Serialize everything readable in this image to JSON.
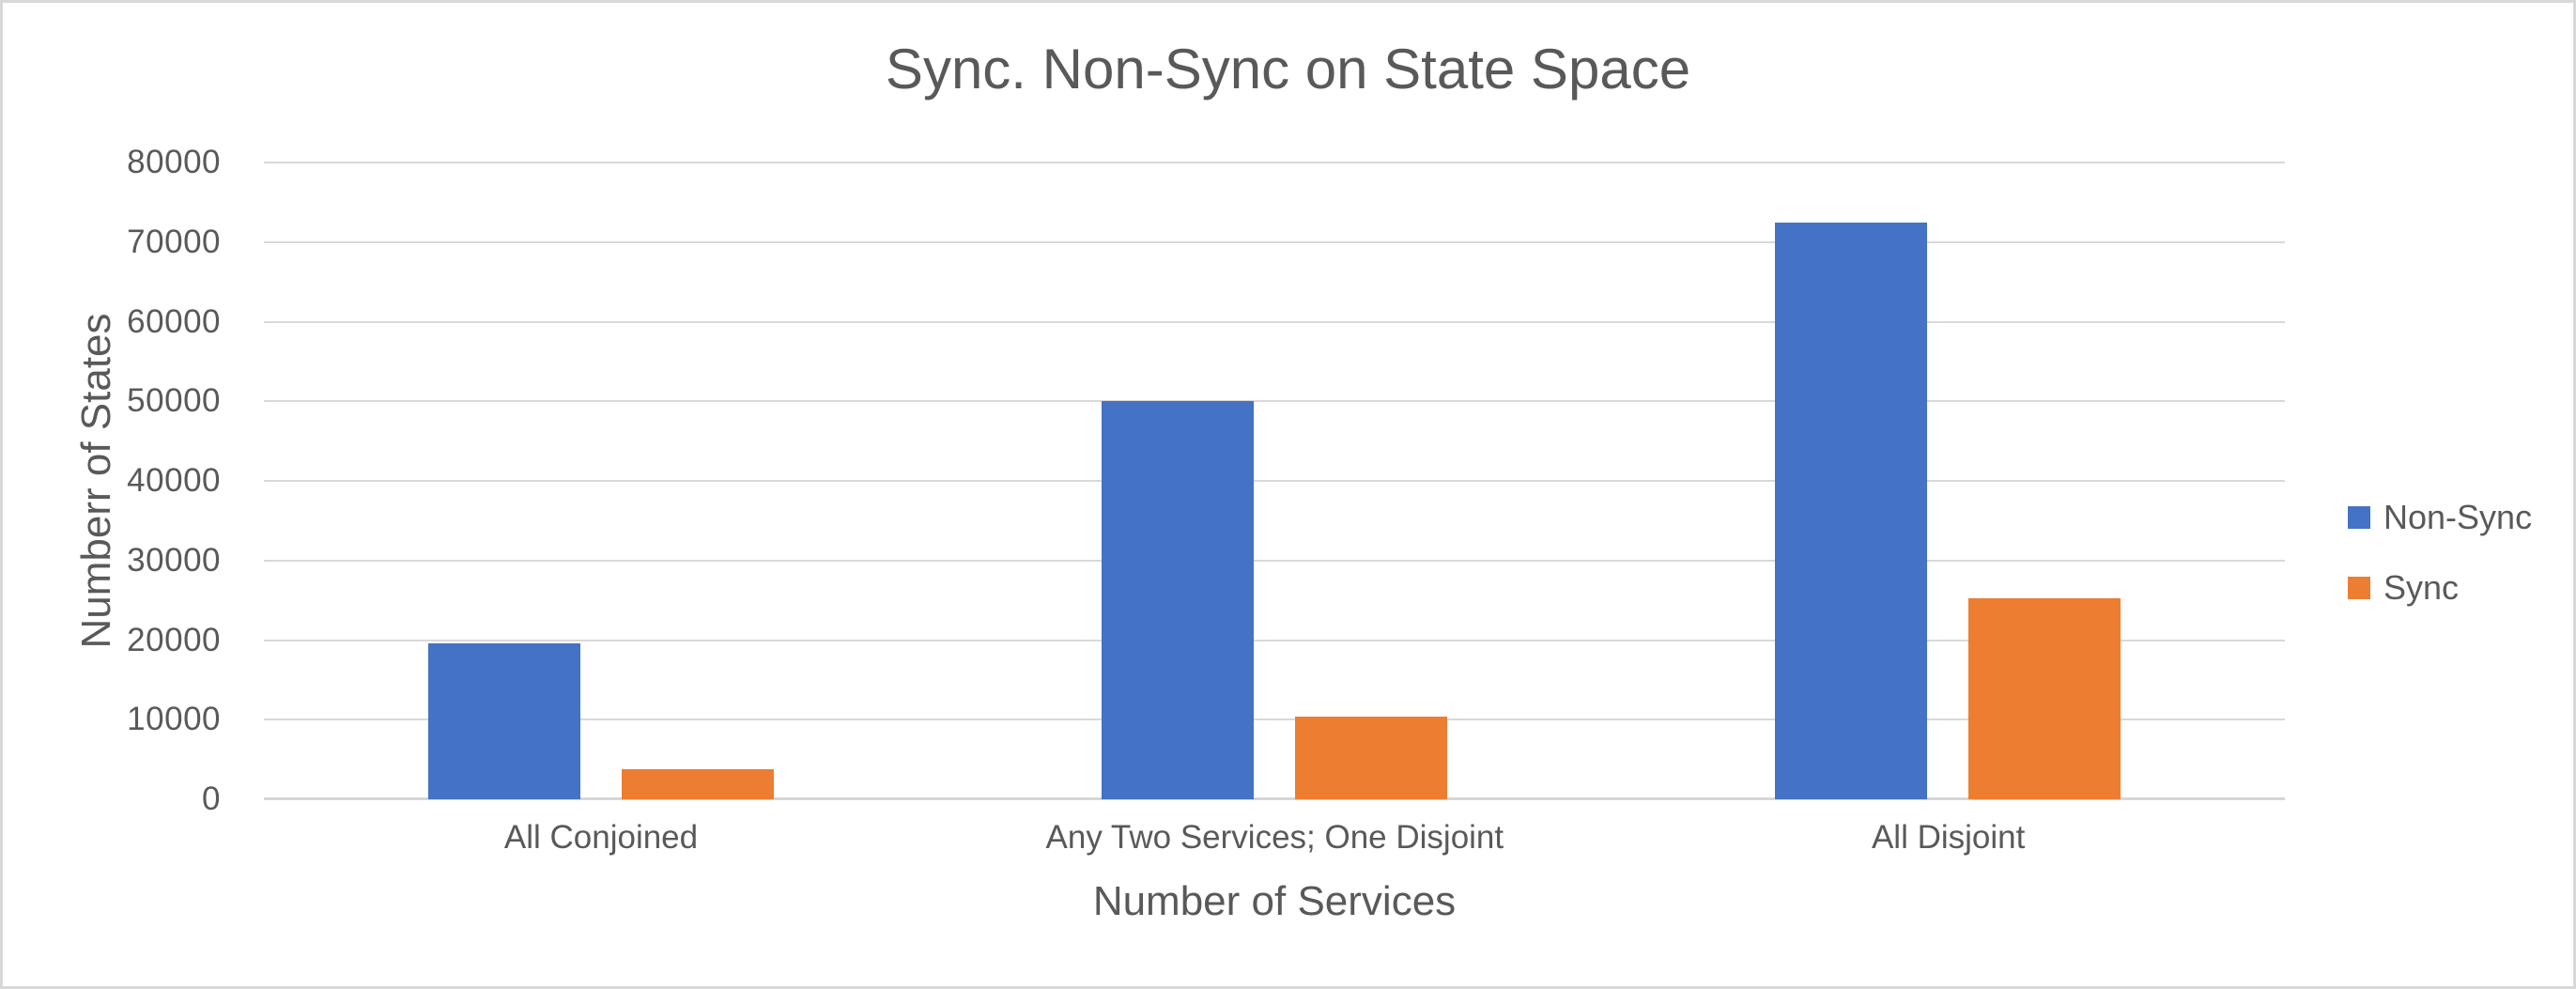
{
  "window": {
    "background_color": "#FFFFFF",
    "border_color": "#D8D8D8"
  },
  "chart_data": {
    "type": "bar",
    "title": "Sync. Non-Sync on State Space",
    "xlabel": "Number of Services",
    "ylabel": "Numberr of States",
    "categories": [
      "All Conjoined",
      "Any Two Services; One Disjoint",
      "All Disjoint"
    ],
    "series": [
      {
        "name": "Non-Sync",
        "color": "#4472C4",
        "values": [
          19600,
          50000,
          72500
        ]
      },
      {
        "name": "Sync",
        "color": "#ED7D31",
        "values": [
          3800,
          10400,
          25200
        ]
      }
    ],
    "ylim": [
      0,
      80000
    ],
    "ytick_step": 10000,
    "ytick_labels": [
      "0",
      "10000",
      "20000",
      "30000",
      "40000",
      "50000",
      "60000",
      "70000",
      "80000"
    ],
    "grid": true,
    "gridline_color": "#D9D9D9",
    "axis_line_color": "#D6D6D6",
    "text_color": "#595959",
    "legend_position": "right",
    "legend_entries": [
      "Non-Sync",
      "Sync"
    ]
  }
}
